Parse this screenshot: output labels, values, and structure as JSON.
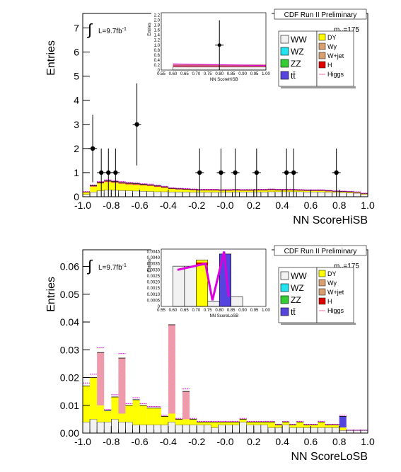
{
  "chart_data": [
    {
      "type": "bar",
      "id": "top",
      "title": "CDF Run II Preliminary",
      "xlabel": "NN ScoreHiSB",
      "ylabel": "Entries",
      "xlim": [
        -1.0,
        1.0
      ],
      "ylim": [
        0,
        7.6
      ],
      "xticks": [
        "-1.0",
        "-0.8",
        "-0.6",
        "-0.4",
        "-0.2",
        "-0.0",
        "0.2",
        "0.4",
        "0.6",
        "0.8",
        "1.0"
      ],
      "yticks": [
        "0",
        "1",
        "2",
        "3",
        "4",
        "5",
        "6",
        "7"
      ],
      "lumi": "L=9.7fb",
      "lumi_sup": "-1",
      "mass_label": "m",
      "mass_sub": "H",
      "mass_value": "=175",
      "data_points": [
        {
          "x": -0.93,
          "y": 2,
          "err": 1.4
        },
        {
          "x": -0.87,
          "y": 1,
          "err": 1.0
        },
        {
          "x": -0.82,
          "y": 1,
          "err": 1.0
        },
        {
          "x": -0.77,
          "y": 1,
          "err": 1.0
        },
        {
          "x": -0.62,
          "y": 3,
          "err": 1.7
        },
        {
          "x": -0.18,
          "y": 1,
          "err": 1.0
        },
        {
          "x": -0.03,
          "y": 1,
          "err": 1.0
        },
        {
          "x": 0.07,
          "y": 1,
          "err": 1.0
        },
        {
          "x": 0.22,
          "y": 1,
          "err": 1.0
        },
        {
          "x": 0.43,
          "y": 1,
          "err": 1.0
        },
        {
          "x": 0.48,
          "y": 1,
          "err": 1.0
        },
        {
          "x": 0.78,
          "y": 1,
          "err": 1.0
        }
      ],
      "bkg_x": [
        -1.0,
        -0.95,
        -0.9,
        -0.85,
        -0.8,
        -0.75,
        -0.7,
        -0.65,
        -0.6,
        -0.55,
        -0.5,
        -0.45,
        -0.4,
        -0.35,
        -0.3,
        -0.25,
        -0.2,
        -0.15,
        -0.1,
        -0.05,
        0.0,
        0.05,
        0.1,
        0.15,
        0.2,
        0.25,
        0.3,
        0.35,
        0.4,
        0.45,
        0.5,
        0.55,
        0.6,
        0.65,
        0.7,
        0.75,
        0.8,
        0.85,
        0.9,
        0.95
      ],
      "bkg_ww": [
        0.1,
        0.2,
        0.25,
        0.28,
        0.27,
        0.26,
        0.25,
        0.24,
        0.23,
        0.22,
        0.21,
        0.21,
        0.2,
        0.2,
        0.2,
        0.19,
        0.19,
        0.19,
        0.19,
        0.19,
        0.19,
        0.2,
        0.2,
        0.2,
        0.2,
        0.2,
        0.21,
        0.21,
        0.21,
        0.21,
        0.21,
        0.2,
        0.2,
        0.2,
        0.19,
        0.18,
        0.17,
        0.16,
        0.15,
        0.1
      ],
      "bkg_dy": [
        0.08,
        0.22,
        0.3,
        0.33,
        0.31,
        0.28,
        0.26,
        0.25,
        0.24,
        0.23,
        0.2,
        0.16,
        0.12,
        0.1,
        0.09,
        0.08,
        0.07,
        0.07,
        0.07,
        0.06,
        0.06,
        0.06,
        0.05,
        0.05,
        0.06,
        0.06,
        0.06,
        0.05,
        0.05,
        0.05,
        0.04,
        0.04,
        0.04,
        0.04,
        0.03,
        0.03,
        0.03,
        0.03,
        0.02,
        0.02
      ],
      "bkg_other": [
        0.02,
        0.04,
        0.05,
        0.05,
        0.05,
        0.05,
        0.05,
        0.05,
        0.04,
        0.04,
        0.04,
        0.04,
        0.03,
        0.03,
        0.03,
        0.03,
        0.03,
        0.03,
        0.03,
        0.03,
        0.03,
        0.03,
        0.03,
        0.03,
        0.03,
        0.03,
        0.03,
        0.03,
        0.03,
        0.03,
        0.03,
        0.03,
        0.03,
        0.03,
        0.03,
        0.02,
        0.02,
        0.02,
        0.02,
        0.02
      ],
      "inset": {
        "xlabel": "NN ScoreHiSB",
        "ylabel": "Entries",
        "xticks": [
          "0.55",
          "0.60",
          "0.65",
          "0.70",
          "0.75",
          "0.80",
          "0.85",
          "0.90",
          "0.95",
          "1.00"
        ],
        "yticks": [
          "0",
          "0.2",
          "0.4",
          "0.6",
          "0.8",
          "1.0",
          "1.2",
          "1.4",
          "1.6",
          "1.8",
          "2.0",
          "2.2"
        ],
        "point": {
          "x": 0.8,
          "y": 1.0,
          "err": 1.0
        }
      }
    },
    {
      "type": "bar",
      "id": "bottom",
      "title": "CDF Run II Preliminary",
      "xlabel": "NN ScoreLoSB",
      "ylabel": "Entries",
      "xlim": [
        -1.0,
        1.0
      ],
      "ylim": [
        0,
        0.066
      ],
      "xticks": [
        "-1.0",
        "-0.8",
        "-0.6",
        "-0.4",
        "-0.2",
        "-0.0",
        "0.2",
        "0.4",
        "0.6",
        "0.8",
        "1.0"
      ],
      "yticks": [
        "0.00",
        "0.01",
        "0.02",
        "0.03",
        "0.04",
        "0.05",
        "0.06"
      ],
      "lumi": "L=9.7fb",
      "lumi_sup": "-1",
      "mass_label": "m",
      "mass_sub": "H",
      "mass_value": "=175",
      "bkg_x": [
        -1.0,
        -0.95,
        -0.9,
        -0.85,
        -0.8,
        -0.75,
        -0.7,
        -0.65,
        -0.6,
        -0.55,
        -0.5,
        -0.45,
        -0.4,
        -0.35,
        -0.3,
        -0.25,
        -0.2,
        -0.15,
        -0.1,
        -0.05,
        0.0,
        0.05,
        0.1,
        0.15,
        0.2,
        0.25,
        0.3,
        0.35,
        0.4,
        0.45,
        0.5,
        0.55,
        0.6,
        0.65,
        0.7,
        0.75,
        0.8,
        0.85,
        0.9,
        0.95
      ],
      "bkg_ww": [
        0.004,
        0.005,
        0.004,
        0.004,
        0.005,
        0.004,
        0.004,
        0.003,
        0.003,
        0.003,
        0.003,
        0.003,
        0.004,
        0.003,
        0.003,
        0.003,
        0.003,
        0.003,
        0.002,
        0.003,
        0.003,
        0.003,
        0.004,
        0.003,
        0.003,
        0.003,
        0.002,
        0.002,
        0.003,
        0.002,
        0.002,
        0.002,
        0.002,
        0.002,
        0.002,
        0.002,
        0.001,
        0.001,
        0.001,
        0.001
      ],
      "bkg_dy": [
        0.013,
        0.015,
        0.006,
        0.004,
        0.008,
        0.003,
        0.006,
        0.009,
        0.007,
        0.006,
        0.006,
        0.003,
        0.003,
        0.002,
        0.002,
        0.002,
        0.001,
        0.001,
        0.002,
        0.001,
        0.001,
        0.001,
        0.001,
        0.001,
        0.001,
        0.001,
        0.002,
        0.001,
        0.001,
        0.001,
        0.002,
        0.001,
        0.001,
        0.002,
        0.001,
        0.001,
        0.001,
        0.0,
        0.0,
        0.0
      ],
      "bkg_wjet": [
        0.0,
        0.0,
        0.019,
        0.0,
        0.0,
        0.02,
        0.0,
        0.0,
        0.0,
        0.0,
        0.0,
        0.0,
        0.032,
        0.0,
        0.01,
        0.0,
        0.0,
        0.0,
        0.0,
        0.0,
        0.0,
        0.0,
        0.0,
        0.0,
        0.0,
        0.0,
        0.0,
        0.0,
        0.0,
        0.0,
        0.0,
        0.0,
        0.0,
        0.0,
        0.0,
        0.0,
        0.0,
        0.0,
        0.0,
        0.0
      ],
      "bkg_tt": [
        0.0,
        0.0,
        0.0,
        0.0,
        0.0,
        0.0,
        0.0,
        0.0,
        0.0,
        0.0,
        0.0,
        0.0,
        0.0,
        0.0,
        0.0,
        0.0,
        0.0,
        0.0,
        0.0,
        0.0,
        0.0,
        0.0,
        0.0,
        0.0,
        0.0,
        0.0,
        0.0,
        0.0,
        0.0,
        0.0,
        0.0,
        0.0,
        0.0,
        0.0,
        0.0,
        0.0,
        0.004,
        0.0,
        0.0,
        0.0
      ],
      "inset": {
        "xlabel": "NN ScoreLoSB",
        "ylabel": "Entries",
        "xticks": [
          "0.55",
          "0.60",
          "0.65",
          "0.70",
          "0.75",
          "0.80",
          "0.85",
          "0.90",
          "0.95",
          "1.00"
        ],
        "yticks": [
          "0",
          "0.0005",
          "0.0010",
          "0.0015",
          "0.0020",
          "0.0025",
          "0.0030",
          "0.0035",
          "0.0040",
          "0.0045"
        ]
      }
    }
  ],
  "legend": {
    "left": [
      {
        "label": "WW",
        "color": "#f2f2f2"
      },
      {
        "label": "WZ",
        "color": "#22e4f0"
      },
      {
        "label": "ZZ",
        "color": "#33cc33"
      },
      {
        "label": "tt̄",
        "color": "#5544dd"
      }
    ],
    "right": [
      {
        "label": "DY",
        "color": "#ffff00"
      },
      {
        "label": "Wγ",
        "color": "#d8a070"
      },
      {
        "label": "W+jet",
        "color": "#d8a070"
      },
      {
        "label": "H",
        "color": "#dd0000"
      },
      {
        "label": "Higgs",
        "color": "#ff66aa"
      }
    ]
  },
  "colors": {
    "ww": "#f2f2f2",
    "dy": "#ffff00",
    "wjet": "#d8a070",
    "tt": "#5544dd",
    "h": "#dd0000",
    "signal": "#dd00dd",
    "hatch": "#ff88cc"
  }
}
